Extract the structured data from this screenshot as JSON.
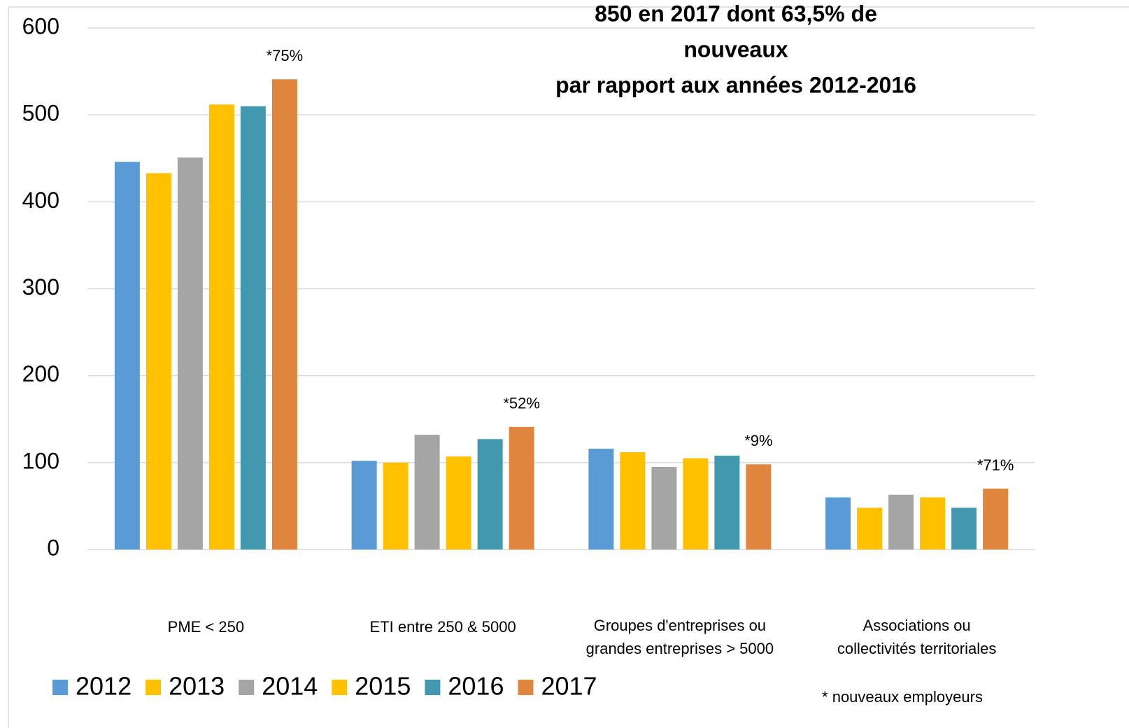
{
  "chart_data": {
    "type": "bar",
    "title_lines": [
      "850 en 2017 dont 63,5% de",
      "nouveaux",
      "par rapport aux années 2012-2016"
    ],
    "categories": [
      [
        "PME < 250"
      ],
      [
        "ETI entre 250 & 5000"
      ],
      [
        "Groupes d'entreprises ou",
        "grandes entreprises > 5000"
      ],
      [
        "Associations ou",
        "collectivités territoriales"
      ]
    ],
    "series": [
      {
        "name": "2012",
        "color": "#5b9bd5",
        "values": [
          446,
          102,
          116,
          60
        ]
      },
      {
        "name": "2013",
        "color": "#ffc000",
        "values": [
          433,
          100,
          112,
          48
        ]
      },
      {
        "name": "2014",
        "color": "#a5a5a5",
        "values": [
          451,
          132,
          95,
          63
        ]
      },
      {
        "name": "2015",
        "color": "#ffc000",
        "values": [
          512,
          107,
          105,
          60
        ]
      },
      {
        "name": "2016",
        "color": "#4198af",
        "values": [
          510,
          127,
          108,
          48
        ]
      },
      {
        "name": "2017",
        "color": "#e0853e",
        "values": [
          541,
          141,
          98,
          70
        ]
      }
    ],
    "annotations": [
      "*75%",
      "*52%",
      "*9%",
      "*71%"
    ],
    "footnote": "* nouveaux employeurs",
    "ylim": [
      0,
      600
    ],
    "yticks": [
      0,
      100,
      200,
      300,
      400,
      500,
      600
    ],
    "grid": true,
    "legend": "bottom"
  }
}
